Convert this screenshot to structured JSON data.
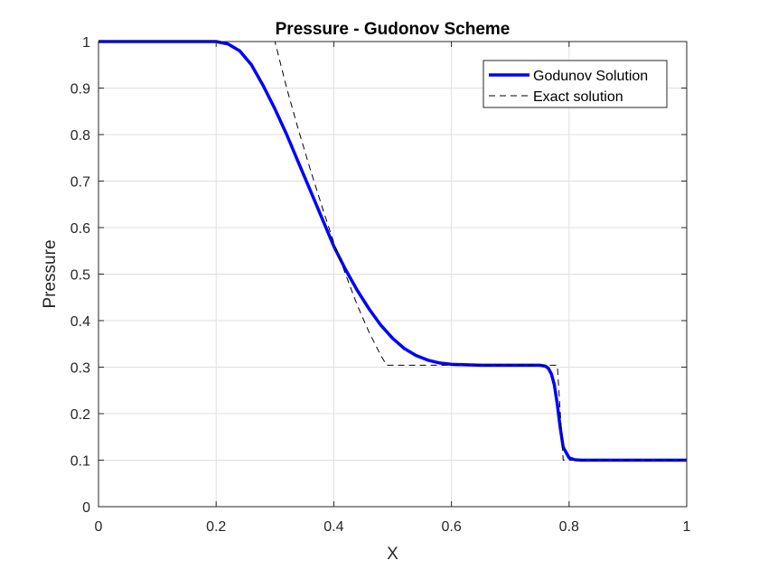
{
  "chart_data": {
    "type": "line",
    "title": "Pressure - Gudonov Scheme",
    "xlabel": "X",
    "ylabel": "Pressure",
    "xlim": [
      0,
      1
    ],
    "ylim": [
      0,
      1
    ],
    "xticks": [
      0,
      0.2,
      0.4,
      0.6,
      0.8,
      1
    ],
    "xtick_labels": [
      "0",
      "0.2",
      "0.4",
      "0.6",
      "0.8",
      "1"
    ],
    "yticks": [
      0,
      0.1,
      0.2,
      0.3,
      0.4,
      0.5,
      0.6,
      0.7,
      0.8,
      0.9,
      1
    ],
    "ytick_labels": [
      "0",
      "0.1",
      "0.2",
      "0.3",
      "0.4",
      "0.5",
      "0.6",
      "0.7",
      "0.8",
      "0.9",
      "1"
    ],
    "grid": true,
    "legend_position": "top-right",
    "series": [
      {
        "name": "Godunov Solution",
        "color": "#0000ff",
        "style": "solid",
        "x": [
          0,
          0.2,
          0.22,
          0.24,
          0.26,
          0.28,
          0.3,
          0.32,
          0.34,
          0.36,
          0.38,
          0.4,
          0.42,
          0.44,
          0.46,
          0.48,
          0.5,
          0.52,
          0.54,
          0.56,
          0.58,
          0.6,
          0.65,
          0.7,
          0.75,
          0.76,
          0.765,
          0.77,
          0.775,
          0.78,
          0.785,
          0.79,
          0.8,
          0.81,
          0.82,
          0.85,
          0.9,
          1.0
        ],
        "y": [
          1.0,
          1.0,
          0.995,
          0.98,
          0.95,
          0.905,
          0.855,
          0.8,
          0.74,
          0.68,
          0.62,
          0.56,
          0.51,
          0.465,
          0.425,
          0.39,
          0.362,
          0.34,
          0.325,
          0.315,
          0.309,
          0.306,
          0.304,
          0.304,
          0.304,
          0.302,
          0.297,
          0.285,
          0.262,
          0.22,
          0.17,
          0.128,
          0.105,
          0.101,
          0.1,
          0.1,
          0.1,
          0.1
        ]
      },
      {
        "name": "Exact solution",
        "color": "#000000",
        "style": "dashed",
        "x": [
          0,
          0.3,
          0.32,
          0.34,
          0.36,
          0.38,
          0.4,
          0.42,
          0.44,
          0.46,
          0.48,
          0.49,
          0.6,
          0.7,
          0.78,
          0.79,
          1.0
        ],
        "y": [
          1.0,
          1.0,
          0.9,
          0.81,
          0.725,
          0.645,
          0.568,
          0.5,
          0.433,
          0.375,
          0.325,
          0.304,
          0.304,
          0.304,
          0.304,
          0.1,
          0.1
        ]
      }
    ]
  }
}
